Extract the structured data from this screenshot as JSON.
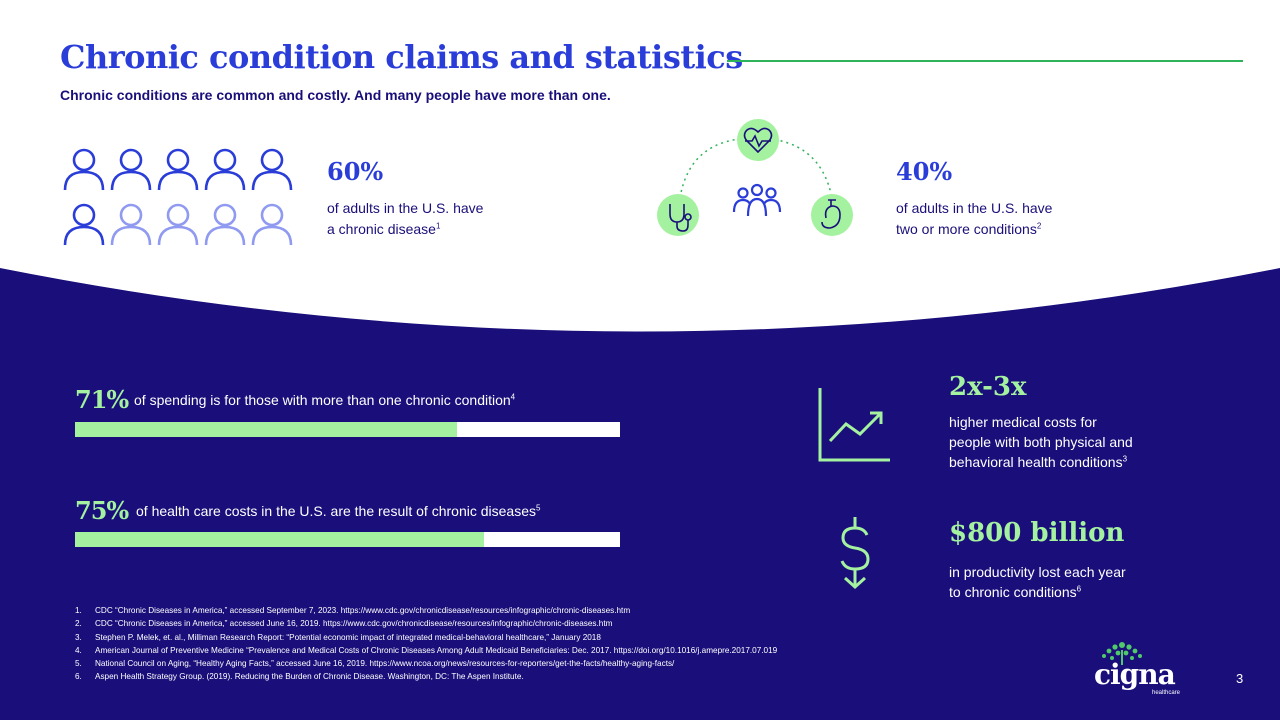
{
  "header": {
    "title": "Chronic condition claims and statistics",
    "subtitle": "Chronic conditions are common and costly. And many people have more than one."
  },
  "stat_adults_chronic": {
    "value": "60%",
    "line1": "of adults in the U.S. have",
    "line2": "a chronic disease",
    "ref": "1",
    "icon": "people-grid-icon",
    "highlighted_people": 6,
    "total_people": 10
  },
  "stat_multiple_conditions": {
    "value": "40%",
    "line1": "of adults in the U.S. have",
    "line2": "two or more conditions",
    "ref": "2",
    "icons": [
      "heart-pulse-icon",
      "stethoscope-icon",
      "group-icon",
      "organ-icon"
    ]
  },
  "bars": [
    {
      "value": "71%",
      "text": "of spending is for those with more than one chronic condition",
      "ref": "4",
      "fill_fraction": 0.7
    },
    {
      "value": "75%",
      "text": "of health care costs in the U.S. are the result of chronic diseases",
      "ref": "5",
      "fill_fraction": 0.75
    }
  ],
  "stat_costs": {
    "value": "2x-3x",
    "line1": "higher medical costs for",
    "line2": "people with both physical and",
    "line3": "behavioral health conditions",
    "ref": "3",
    "icon": "trend-chart-icon"
  },
  "stat_productivity": {
    "value": "$800 billion",
    "line1": "in productivity lost each year",
    "line2": "to chronic conditions",
    "ref": "6",
    "icon": "dollar-icon"
  },
  "footnotes": [
    {
      "num": "1.",
      "text": "CDC “Chronic Diseases in America,” accessed September 7, 2023. https://www.cdc.gov/chronicdisease/resources/infographic/chronic-diseases.htm"
    },
    {
      "num": "2.",
      "text": "CDC “Chronic Diseases in America,” accessed June 16, 2019. https://www.cdc.gov/chronicdisease/resources/infographic/chronic-diseases.htm"
    },
    {
      "num": "3.",
      "text": "Stephen P. Melek, et. al., Milliman Research Report: “Potential economic impact of integrated medical-behavioral healthcare,” January 2018"
    },
    {
      "num": "4.",
      "text": "American Journal of Preventive Medicine “Prevalence and Medical Costs of Chronic Diseases Among Adult Medicaid Beneficiaries: Dec. 2017. https://doi.org/10.1016/j.amepre.2017.07.019"
    },
    {
      "num": "5.",
      "text": "National Council on Aging, “Healthy Aging Facts,” accessed June 16, 2019. https://www.ncoa.org/news/resources-for-reporters/get-the-facts/healthy-aging-facts/"
    },
    {
      "num": "6.",
      "text": "Aspen Health Strategy Group. (2019). Reducing the Burden of Chronic Disease. Washington, DC: The Aspen Institute."
    }
  ],
  "brand": {
    "name": "cigna",
    "tagline": "healthcare",
    "icon": "tree-of-life-icon"
  },
  "page_number": "3",
  "colors": {
    "navy": "#1a0f7a",
    "blue": "#2a3dd8",
    "light_blue": "#8f9af0",
    "mint": "#a4f2a0",
    "green_rule": "#2fb35a"
  }
}
